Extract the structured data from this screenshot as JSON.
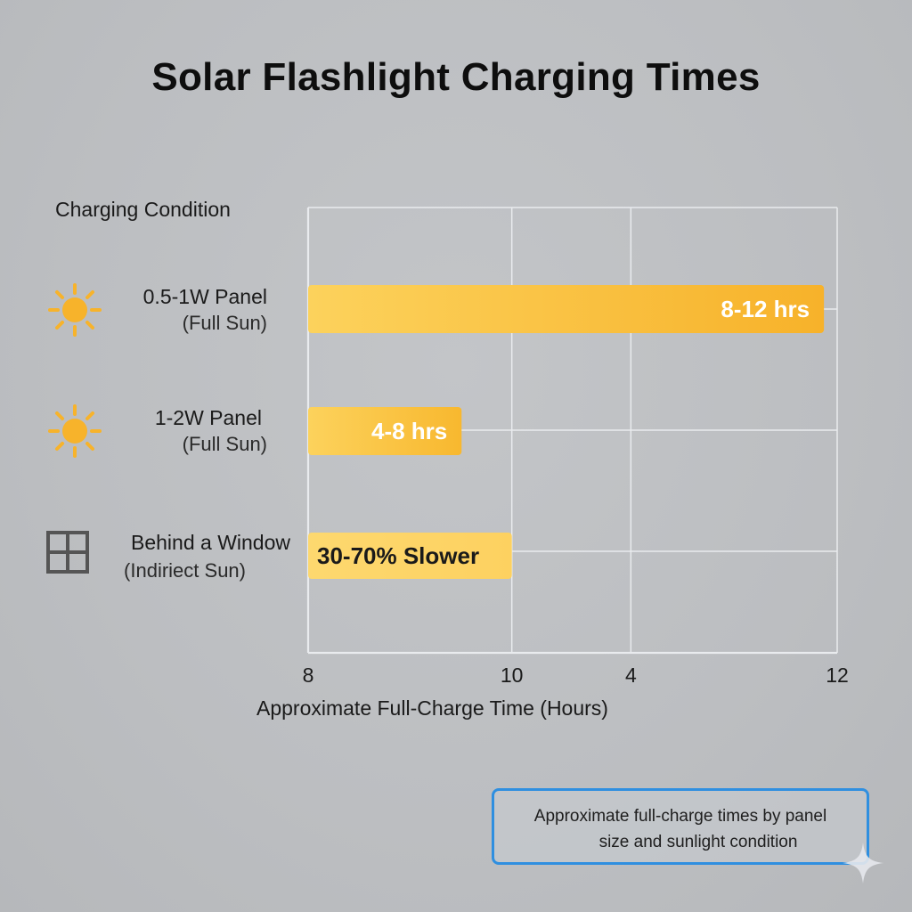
{
  "chart_data": {
    "type": "bar",
    "orientation": "horizontal",
    "title": "Solar Flashlight Charging Times",
    "category_axis_title": "Charging Condition",
    "xlabel": "Approximate Full-Charge Time (Hours)",
    "x_tick_labels": [
      "8",
      "10",
      "4",
      "12"
    ],
    "grid": true,
    "categories": [
      {
        "line1": "0.5-1W Panel",
        "line2": "(Full Sun)",
        "icon": "sun-icon"
      },
      {
        "line1": "1-2W Panel",
        "line2": "(Full Sun)",
        "icon": "sun-icon"
      },
      {
        "line1": "Behind a Window",
        "line2": "(Indiriect Sun)",
        "icon": "window-icon"
      }
    ],
    "bars": [
      {
        "value_fraction": 0.975,
        "label": "8-12 hrs",
        "color": "#f8b92f",
        "label_color": "#ffffff"
      },
      {
        "value_fraction": 0.29,
        "label": "4-8 hrs",
        "color": "#f9bf3a",
        "label_color": "#ffffff"
      },
      {
        "value_fraction": 0.385,
        "label": "30-70% Slower",
        "color": "#fdd56b",
        "label_color": "#1a1a1a"
      }
    ]
  },
  "note": {
    "line1": "Approximate full-charge times by panel",
    "line2": "size and sunlight condition"
  },
  "colors": {
    "accent_border": "#2f8fe0",
    "sun": "#f7b32b",
    "grid": "#e9ebee"
  }
}
